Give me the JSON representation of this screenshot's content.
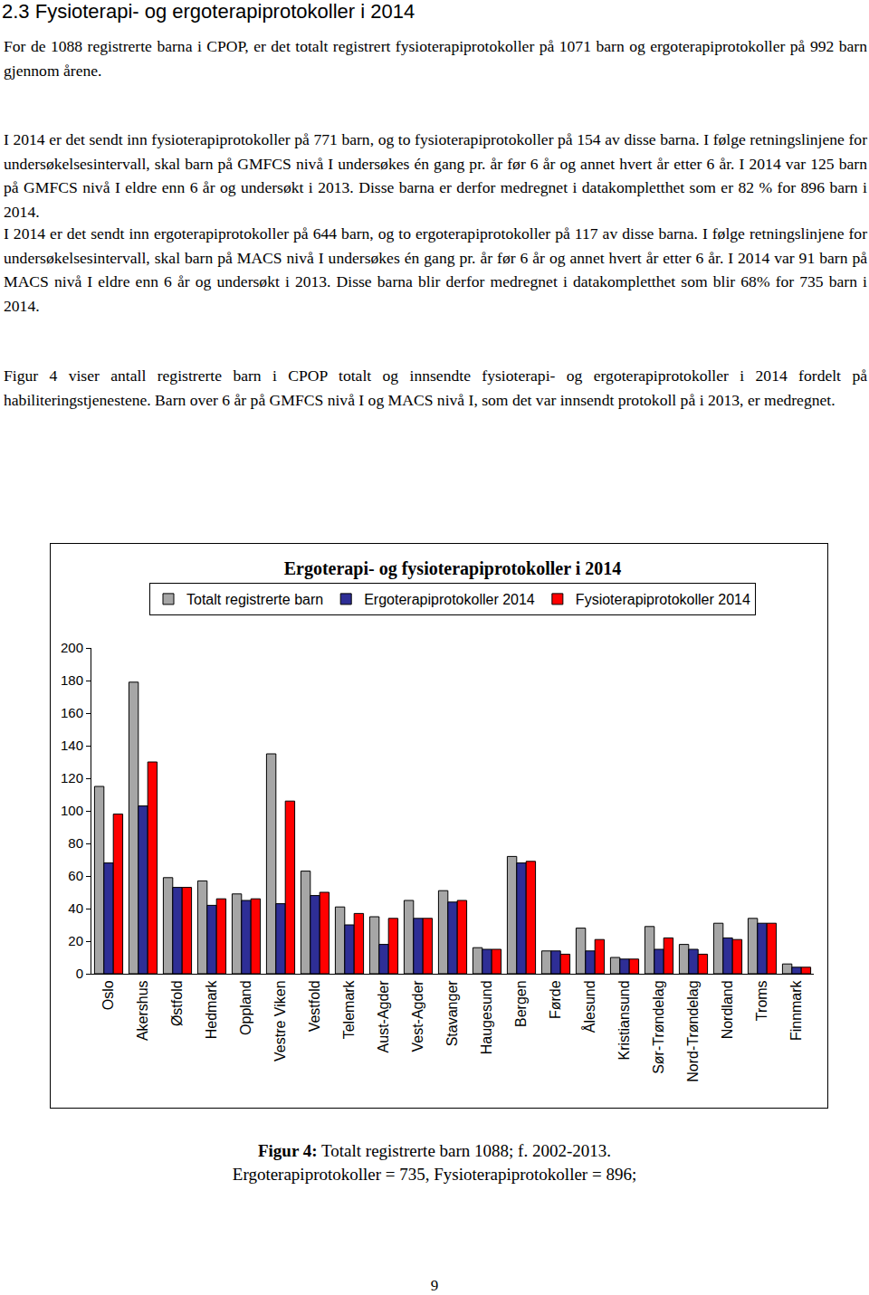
{
  "heading": "2.3 Fysioterapi- og ergoterapiprotokoller i 2014",
  "paragraphs": [
    "For de 1088 registrerte barna i CPOP, er det totalt registrert fysioterapiprotokoller på 1071 barn og ergoterapiprotokoller på 992 barn gjennom årene.",
    "I 2014 er det sendt inn fysioterapiprotokoller på 771 barn, og to fysioterapiprotokoller på 154 av disse barna. I følge retningslinjene for undersøkelsesintervall, skal barn på GMFCS nivå I undersøkes én gang pr. år før 6 år og annet hvert år etter 6 år. I 2014 var 125 barn på GMFCS nivå I eldre enn 6 år og undersøkt i 2013. Disse barna er derfor medregnet i datakompletthet som er 82 % for 896 barn i 2014.",
    "I 2014 er det sendt inn ergoterapiprotokoller på 644 barn, og to ergoterapiprotokoller på 117 av disse barna. I følge retningslinjene for undersøkelsesintervall, skal barn på MACS nivå I undersøkes én gang pr. år før 6 år og annet hvert år etter 6 år. I 2014 var 91 barn på MACS nivå I eldre enn 6 år og undersøkt i 2013. Disse barna blir derfor medregnet i datakompletthet som blir 68% for 735 barn i 2014.",
    "Figur 4 viser antall registrerte barn i CPOP totalt og innsendte fysioterapi- og ergoterapiprotokoller i 2014 fordelt på habiliteringstjenestene. Barn over 6 år på GMFCS nivå I og MACS nivå I, som det var innsendt protokoll på i 2013, er medregnet."
  ],
  "chart_data": {
    "type": "bar",
    "title": "Ergoterapi- og fysioterapiprotokoller i 2014",
    "categories": [
      "Oslo",
      "Akershus",
      "Østfold",
      "Hedmark",
      "Oppland",
      "Vestre Viken",
      "Vestfold",
      "Telemark",
      "Aust-Agder",
      "Vest-Agder",
      "Stavanger",
      "Haugesund",
      "Bergen",
      "Førde",
      "Ålesund",
      "Kristiansund",
      "Sør-Trøndelag",
      "Nord-Trøndelag",
      "Nordland",
      "Troms",
      "Finnmark"
    ],
    "series": [
      {
        "name": "Totalt registrerte barn",
        "color": "#a6a6a6",
        "values": [
          115,
          179,
          59,
          57,
          49,
          135,
          63,
          41,
          35,
          45,
          51,
          16,
          72,
          14,
          28,
          10,
          29,
          18,
          31,
          34,
          6
        ]
      },
      {
        "name": "Ergoterapiprotokoller 2014",
        "color": "#2e2e96",
        "values": [
          68,
          103,
          53,
          42,
          45,
          43,
          48,
          30,
          18,
          34,
          44,
          15,
          68,
          14,
          14,
          9,
          15,
          15,
          22,
          31,
          4
        ]
      },
      {
        "name": "Fysioterapiprotokoller 2014",
        "color": "#ff0000",
        "values": [
          98,
          130,
          53,
          46,
          46,
          106,
          50,
          37,
          34,
          34,
          45,
          15,
          69,
          12,
          21,
          9,
          22,
          12,
          21,
          31,
          4
        ]
      }
    ],
    "ylim": [
      0,
      200
    ],
    "yticks": [
      0,
      20,
      40,
      60,
      80,
      100,
      120,
      140,
      160,
      180,
      200
    ],
    "grid": false,
    "legend": "top"
  },
  "caption": {
    "label": "Figur 4:",
    "lines": [
      " Totalt registrerte barn 1088; f. 2002-2013.",
      "Ergoterapiprotokoller = 735, Fysioterapiprotokoller = 896;"
    ]
  },
  "page_number": 9
}
